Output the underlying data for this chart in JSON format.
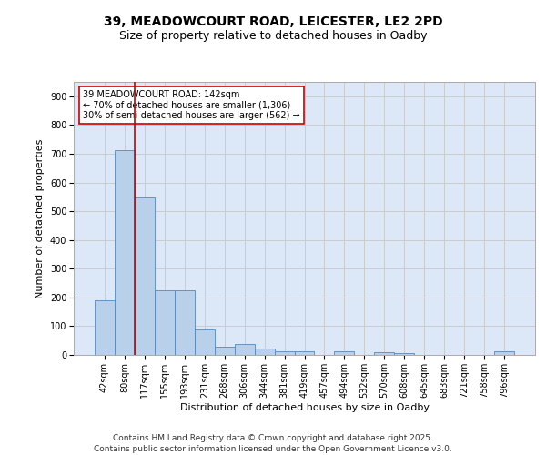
{
  "title1": "39, MEADOWCOURT ROAD, LEICESTER, LE2 2PD",
  "title2": "Size of property relative to detached houses in Oadby",
  "xlabel": "Distribution of detached houses by size in Oadby",
  "ylabel": "Number of detached properties",
  "categories": [
    "42sqm",
    "80sqm",
    "117sqm",
    "155sqm",
    "193sqm",
    "231sqm",
    "268sqm",
    "306sqm",
    "344sqm",
    "381sqm",
    "419sqm",
    "457sqm",
    "494sqm",
    "532sqm",
    "570sqm",
    "608sqm",
    "645sqm",
    "683sqm",
    "721sqm",
    "758sqm",
    "796sqm"
  ],
  "values": [
    190,
    712,
    547,
    225,
    225,
    90,
    27,
    37,
    22,
    12,
    12,
    0,
    12,
    0,
    10,
    7,
    0,
    0,
    0,
    0,
    12
  ],
  "bar_color": "#b8d0ea",
  "bar_edge_color": "#5588bb",
  "vline_color": "#cc0000",
  "vline_x_index": 2,
  "annotation_text": "39 MEADOWCOURT ROAD: 142sqm\n← 70% of detached houses are smaller (1,306)\n30% of semi-detached houses are larger (562) →",
  "annotation_box_facecolor": "#ffffff",
  "annotation_box_edgecolor": "#cc0000",
  "ylim": [
    0,
    950
  ],
  "yticks": [
    0,
    100,
    200,
    300,
    400,
    500,
    600,
    700,
    800,
    900
  ],
  "grid_color": "#cccccc",
  "plot_bg_color": "#dce8f8",
  "fig_bg_color": "#ffffff",
  "footer": "Contains HM Land Registry data © Crown copyright and database right 2025.\nContains public sector information licensed under the Open Government Licence v3.0.",
  "title1_fontsize": 10,
  "title2_fontsize": 9,
  "axis_label_fontsize": 8,
  "tick_fontsize": 7,
  "annotation_fontsize": 7,
  "footer_fontsize": 6.5
}
